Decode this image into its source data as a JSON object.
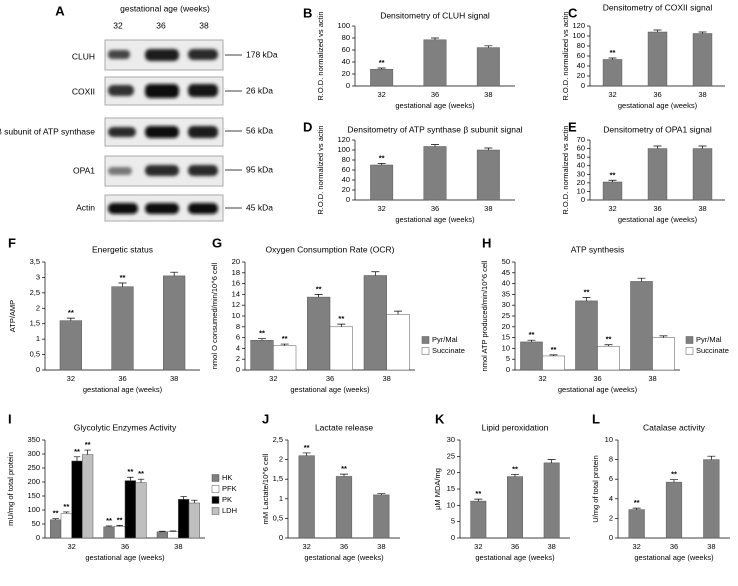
{
  "blot": {
    "panel": "A",
    "header": "gestational age (weeks)",
    "lanes": [
      "32",
      "36",
      "38"
    ],
    "rows": [
      {
        "label": "CLUH",
        "size": "178 kDa"
      },
      {
        "label": "COXII",
        "size": "26 kDa"
      },
      {
        "label": "β subunit of ATP synthase",
        "size": "56 kDa"
      },
      {
        "label": "OPA1",
        "size": "95 kDa"
      },
      {
        "label": "Actin",
        "size": "45 kDa"
      }
    ]
  },
  "chart_data": [
    {
      "panel": "B",
      "type": "bar",
      "title": "Densitometry of CLUH signal",
      "xlabel": "gestational age (weeks)",
      "ylabel": "R.O.D. normalized vs actin",
      "categories": [
        "32",
        "36",
        "38"
      ],
      "values": [
        28,
        77,
        64
      ],
      "errors": [
        2,
        3,
        3
      ],
      "significance": [
        "**",
        null,
        null
      ],
      "color": "#808080",
      "ylim": [
        0,
        100
      ],
      "yticks": [
        0,
        20,
        40,
        60,
        80,
        100
      ]
    },
    {
      "panel": "C",
      "type": "bar",
      "title": "Densitometry of COXII signal",
      "xlabel": "gestational age (weeks)",
      "ylabel": "R.O.D. normalized vs actin",
      "categories": [
        "32",
        "36",
        "38"
      ],
      "values": [
        53,
        108,
        105
      ],
      "errors": [
        3,
        4,
        3
      ],
      "significance": [
        "**",
        null,
        null
      ],
      "color": "#808080",
      "ylim": [
        0,
        120
      ],
      "yticks": [
        0,
        20,
        40,
        60,
        80,
        100,
        120
      ]
    },
    {
      "panel": "D",
      "type": "bar",
      "title": "Densitometry of ATP synthase β subunit signal",
      "xlabel": "gestational age (weeks)",
      "ylabel": "R.O.D. normalized vs actin",
      "categories": [
        "32",
        "36",
        "38"
      ],
      "values": [
        70,
        107,
        100
      ],
      "errors": [
        3,
        4,
        4
      ],
      "significance": [
        "**",
        null,
        null
      ],
      "color": "#808080",
      "ylim": [
        0,
        120
      ],
      "yticks": [
        0,
        20,
        40,
        60,
        80,
        100,
        120
      ]
    },
    {
      "panel": "E",
      "type": "bar",
      "title": "Densitometry of OPA1 signal",
      "xlabel": "gestational age (weeks)",
      "ylabel": "R.O.D. normalized vs actin",
      "categories": [
        "32",
        "36",
        "38"
      ],
      "values": [
        21,
        60,
        60
      ],
      "errors": [
        2,
        3,
        3
      ],
      "significance": [
        "**",
        null,
        null
      ],
      "color": "#808080",
      "ylim": [
        0,
        70
      ],
      "yticks": [
        0,
        10,
        20,
        30,
        40,
        50,
        60,
        70
      ]
    },
    {
      "panel": "F",
      "type": "bar",
      "title": "Energetic status",
      "xlabel": "gestational age (weeks)",
      "ylabel": "ATP/AMP",
      "categories": [
        "32",
        "36",
        "38"
      ],
      "values": [
        1.6,
        2.7,
        3.05
      ],
      "errors": [
        0.08,
        0.12,
        0.12
      ],
      "significance": [
        "**",
        "**",
        null
      ],
      "color": "#808080",
      "ylim": [
        0,
        3.5
      ],
      "yticks": [
        0,
        {
          "value": 0.5,
          "label": "0,5"
        },
        1,
        {
          "value": 1.5,
          "label": "1,5"
        },
        2,
        {
          "value": 2.5,
          "label": "2,5"
        },
        3,
        {
          "value": 3.5,
          "label": "3,5"
        }
      ]
    },
    {
      "panel": "G",
      "type": "bar",
      "title": "Oxygen Consumption Rate (OCR)",
      "xlabel": "gestational age (weeks)",
      "ylabel": "nmol O consumed/min/10^6 cell",
      "categories": [
        "32",
        "36",
        "38"
      ],
      "series": [
        {
          "name": "Pyr/Mal",
          "color": "#808080",
          "values": [
            5.5,
            13.5,
            17.5
          ],
          "errors": [
            0.3,
            0.5,
            0.7
          ],
          "significance": [
            "**",
            "**",
            null
          ]
        },
        {
          "name": "Succinate",
          "color": "#ffffff",
          "values": [
            4.5,
            8,
            10.3
          ],
          "errors": [
            0.3,
            0.5,
            0.6
          ],
          "significance": [
            "**",
            "**",
            null
          ]
        }
      ],
      "ylim": [
        0,
        20
      ],
      "yticks": [
        0,
        2,
        4,
        6,
        8,
        10,
        12,
        14,
        16,
        18,
        20
      ]
    },
    {
      "panel": "H",
      "type": "bar",
      "title": "ATP synthesis",
      "xlabel": "gestational age (weeks)",
      "ylabel": "nmol ATP produced/min/10^6 cell",
      "categories": [
        "32",
        "36",
        "38"
      ],
      "series": [
        {
          "name": "Pyr/Mal",
          "color": "#808080",
          "values": [
            13,
            32,
            41
          ],
          "errors": [
            0.8,
            1.5,
            1.5
          ],
          "significance": [
            "**",
            "**",
            null
          ]
        },
        {
          "name": "Succinate",
          "color": "#ffffff",
          "values": [
            6.5,
            11,
            15
          ],
          "errors": [
            0.5,
            0.7,
            0.8
          ],
          "significance": [
            "**",
            "**",
            null
          ]
        }
      ],
      "ylim": [
        0,
        50
      ],
      "yticks": [
        0,
        5,
        10,
        15,
        20,
        25,
        30,
        35,
        40,
        45,
        50
      ]
    },
    {
      "panel": "I",
      "type": "bar",
      "title": "Glycolytic Enzymes Activity",
      "xlabel": "gestational age (weeks)",
      "ylabel": "mU/mg of total protein",
      "categories": [
        "32",
        "36",
        "38"
      ],
      "series": [
        {
          "name": "HK",
          "color": "#7f7f7f",
          "values": [
            65,
            40,
            22
          ],
          "errors": [
            4,
            3,
            2
          ],
          "significance": [
            "**",
            "**",
            null
          ]
        },
        {
          "name": "PFK",
          "color": "#ffffff",
          "values": [
            88,
            42,
            23
          ],
          "errors": [
            5,
            3,
            2
          ],
          "significance": [
            "**",
            "**",
            null
          ]
        },
        {
          "name": "PK",
          "color": "#000000",
          "values": [
            275,
            205,
            138
          ],
          "errors": [
            15,
            12,
            10
          ],
          "significance": [
            "**",
            "**",
            null
          ]
        },
        {
          "name": "LDH",
          "color": "#bfbfbf",
          "values": [
            298,
            198,
            125
          ],
          "errors": [
            16,
            12,
            10
          ],
          "significance": [
            "**",
            "**",
            null
          ]
        }
      ],
      "ylim": [
        0,
        350
      ],
      "yticks": [
        0,
        50,
        100,
        150,
        200,
        250,
        300,
        350
      ]
    },
    {
      "panel": "J",
      "type": "bar",
      "title": "Lactate release",
      "xlabel": "gestational age (weeks)",
      "ylabel": "mM Lactate/10^6 cell",
      "categories": [
        "32",
        "36",
        "38"
      ],
      "values": [
        2.1,
        1.57,
        1.1
      ],
      "errors": [
        0.07,
        0.06,
        0.03
      ],
      "significance": [
        "**",
        "**",
        null
      ],
      "color": "#808080",
      "ylim": [
        0,
        2.5
      ],
      "yticks": [
        0,
        {
          "value": 0.5,
          "label": "0,5"
        },
        1,
        {
          "value": 1.5,
          "label": "1,5"
        },
        2,
        {
          "value": 2.5,
          "label": "2,5"
        }
      ]
    },
    {
      "panel": "K",
      "type": "bar",
      "title": "Lipid peroxidation",
      "xlabel": "gestational age (weeks)",
      "ylabel": "µM MDA/mg",
      "categories": [
        "32",
        "36",
        "38"
      ],
      "values": [
        11.3,
        18.8,
        23
      ],
      "errors": [
        0.6,
        0.7,
        1
      ],
      "significance": [
        "**",
        "**",
        null
      ],
      "color": "#808080",
      "ylim": [
        0,
        30
      ],
      "yticks": [
        0,
        5,
        10,
        15,
        20,
        25,
        30
      ]
    },
    {
      "panel": "L",
      "type": "bar",
      "title": "Catalase activity",
      "xlabel": "gestational age (weeks)",
      "ylabel": "U/mg of total protein",
      "categories": [
        "32",
        "36",
        "38"
      ],
      "values": [
        2.9,
        5.7,
        8
      ],
      "errors": [
        0.15,
        0.25,
        0.35
      ],
      "significance": [
        "**",
        "**",
        null
      ],
      "color": "#808080",
      "ylim": [
        0,
        10
      ],
      "yticks": [
        0,
        2,
        4,
        6,
        8,
        10
      ]
    }
  ]
}
